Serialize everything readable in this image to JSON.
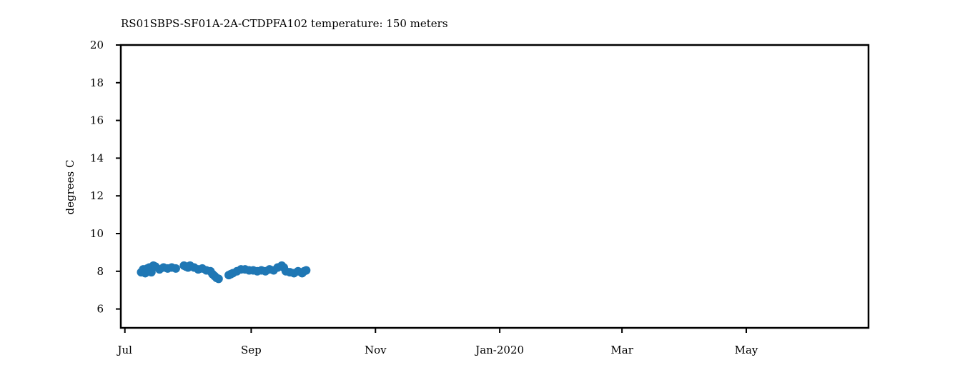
{
  "chart_data": {
    "type": "scatter",
    "title": "RS01SBPS-SF01A-2A-CTDPFA102 temperature: 150 meters",
    "xlabel": "",
    "ylabel": "degrees C",
    "xlim": [
      "2019-06-29",
      "2020-06-30"
    ],
    "ylim": [
      5,
      20
    ],
    "x_ticks": [
      {
        "date": "2019-07-01",
        "label": "Jul"
      },
      {
        "date": "2019-09-01",
        "label": "Sep"
      },
      {
        "date": "2019-11-01",
        "label": "Nov"
      },
      {
        "date": "2020-01-01",
        "label": "Jan-2020"
      },
      {
        "date": "2020-03-01",
        "label": "Mar"
      },
      {
        "date": "2020-05-01",
        "label": "May"
      }
    ],
    "y_ticks": [
      6,
      8,
      10,
      12,
      14,
      16,
      18,
      20
    ],
    "grid": false,
    "color": "#1f77b4",
    "series": [
      {
        "x": [
          "2019-07-09",
          "2019-07-10",
          "2019-07-11",
          "2019-07-12",
          "2019-07-13",
          "2019-07-14",
          "2019-07-15",
          "2019-07-16",
          "2019-07-18",
          "2019-07-20",
          "2019-07-22",
          "2019-07-24",
          "2019-07-26",
          "2019-07-30",
          "2019-07-31",
          "2019-08-01",
          "2019-08-02",
          "2019-08-04",
          "2019-08-06",
          "2019-08-08",
          "2019-08-10",
          "2019-08-12",
          "2019-08-13",
          "2019-08-14",
          "2019-08-15",
          "2019-08-16",
          "2019-08-21",
          "2019-08-22",
          "2019-08-23",
          "2019-08-25",
          "2019-08-27",
          "2019-08-29",
          "2019-08-31",
          "2019-09-02",
          "2019-09-04",
          "2019-09-06",
          "2019-09-08",
          "2019-09-10",
          "2019-09-12",
          "2019-09-14",
          "2019-09-16",
          "2019-09-17",
          "2019-09-18",
          "2019-09-20",
          "2019-09-22",
          "2019-09-24",
          "2019-09-26",
          "2019-09-27",
          "2019-09-28"
        ],
        "y": [
          7.95,
          8.1,
          7.9,
          8.15,
          8.2,
          7.95,
          8.3,
          8.25,
          8.1,
          8.2,
          8.15,
          8.2,
          8.15,
          8.3,
          8.25,
          8.2,
          8.3,
          8.2,
          8.1,
          8.15,
          8.05,
          8.0,
          7.85,
          7.75,
          7.65,
          7.6,
          7.8,
          7.85,
          7.9,
          8.0,
          8.1,
          8.1,
          8.05,
          8.05,
          8.0,
          8.05,
          8.0,
          8.1,
          8.05,
          8.2,
          8.3,
          8.2,
          8.0,
          7.95,
          7.9,
          8.0,
          7.9,
          8.0,
          8.05
        ]
      }
    ]
  }
}
